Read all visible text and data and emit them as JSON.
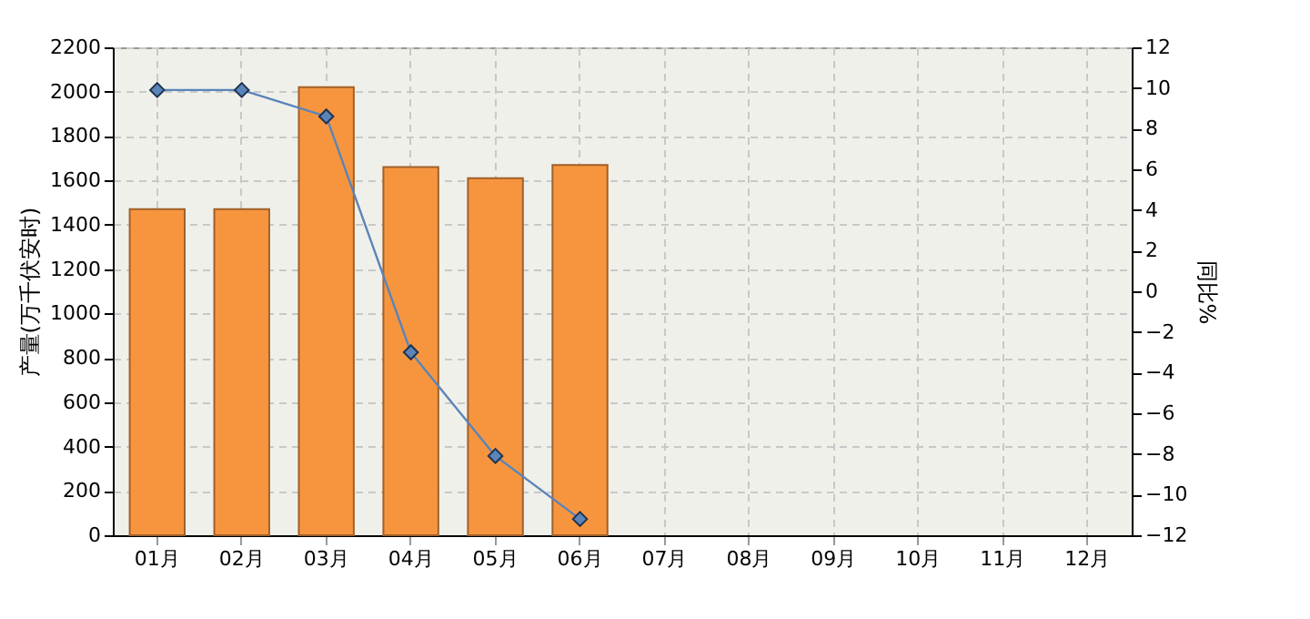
{
  "chart_data": {
    "type": "bar",
    "categories": [
      "01月",
      "02月",
      "03月",
      "04月",
      "05月",
      "06月",
      "07月",
      "08月",
      "09月",
      "10月",
      "11月",
      "12月"
    ],
    "ylabel": "产量(万千伏安时)",
    "y2label": "同比%",
    "series": [
      {
        "color": "#f7953f",
        "values": [
          1470,
          1470,
          2020,
          1660,
          1610,
          1670,
          null,
          null,
          null,
          null,
          null,
          null
        ]
      },
      {
        "type": "line",
        "axis": "y2",
        "color": "#5b84b8",
        "marker": "diamond",
        "values": [
          9.9,
          9.9,
          8.6,
          -3.0,
          -8.1,
          -11.2,
          null,
          null,
          null,
          null,
          null,
          null
        ]
      }
    ],
    "ylim": [
      0,
      2200
    ],
    "yticks": [
      0,
      200,
      400,
      600,
      800,
      1000,
      1200,
      1400,
      1600,
      1800,
      2000,
      2200
    ],
    "y2lim": [
      -12,
      12
    ],
    "y2ticks": [
      -12,
      -10,
      -8,
      -6,
      -4,
      -2,
      0,
      2,
      4,
      6,
      8,
      10,
      12
    ],
    "grid": true
  }
}
